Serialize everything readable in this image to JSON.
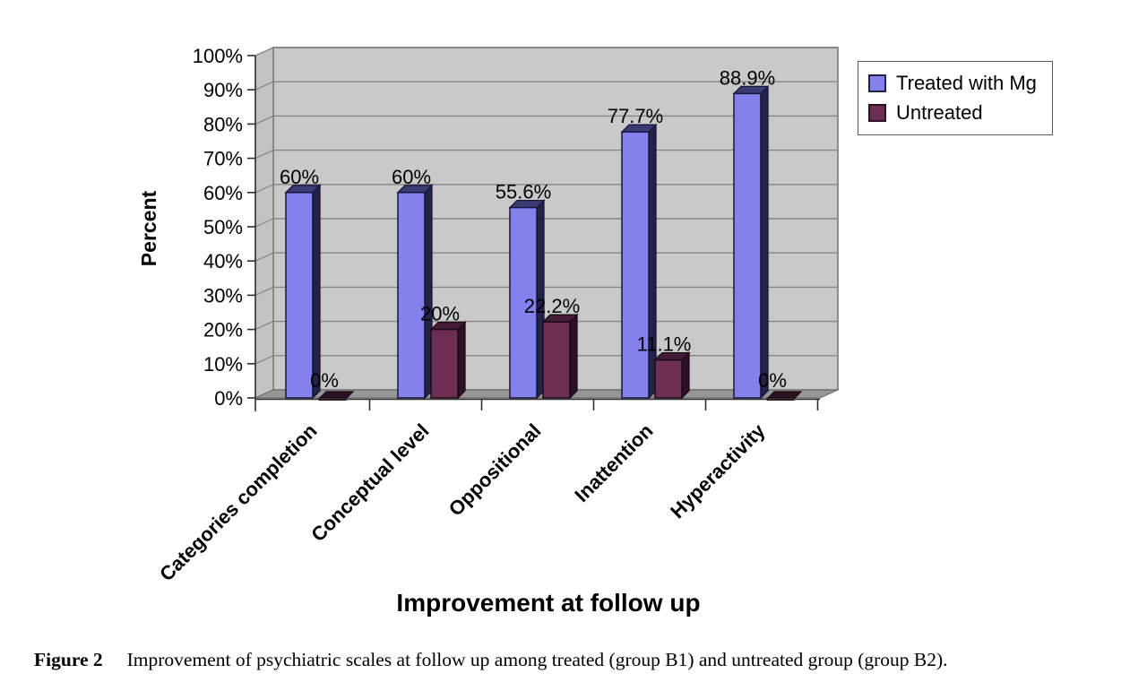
{
  "chart_data": {
    "type": "bar",
    "is_3d": true,
    "title": "Improvement at follow up",
    "ylabel": "Percent",
    "categories": [
      "Categories completion",
      "Conceptual level",
      "Oppositional",
      "Inattention",
      "Hyperactivity"
    ],
    "series": [
      {
        "name": "Treated with Mg",
        "values": [
          60,
          60,
          55.6,
          77.7,
          88.9
        ],
        "data_labels": [
          "60%",
          "60%",
          "55.6%",
          "77.7%",
          "88.9%"
        ],
        "face_color": "#8381EC",
        "top_color": "#3C3C74",
        "side_color": "#23234A",
        "edge_color": "#16163B"
      },
      {
        "name": "Untreated",
        "values": [
          0,
          20,
          22.2,
          11.1,
          0
        ],
        "data_labels": [
          "0%",
          "20%",
          "22.2%",
          "11.1%",
          "0%"
        ],
        "face_color": "#6C2E53",
        "top_color": "#451D37",
        "side_color": "#2B1124",
        "edge_color": "#1A0A15"
      }
    ],
    "y_axis": {
      "min": 0,
      "max": 100,
      "step": 10,
      "tick_labels": [
        "0%",
        "10%",
        "20%",
        "30%",
        "40%",
        "50%",
        "60%",
        "70%",
        "80%",
        "90%",
        "100%"
      ]
    },
    "legend_position": "top-right",
    "grid": true,
    "plot_colors": {
      "back_wall": "#C9C9C9",
      "side_wall": "#C3C3C3",
      "floor": "#969696",
      "gridline": "#858585",
      "wall_border": "#6E6E6E",
      "axis": "#2F2F2F"
    }
  },
  "caption": {
    "label": "Figure 2",
    "text": "Improvement of psychiatric scales at follow up among treated (group B1) and untreated group (group B2)."
  }
}
